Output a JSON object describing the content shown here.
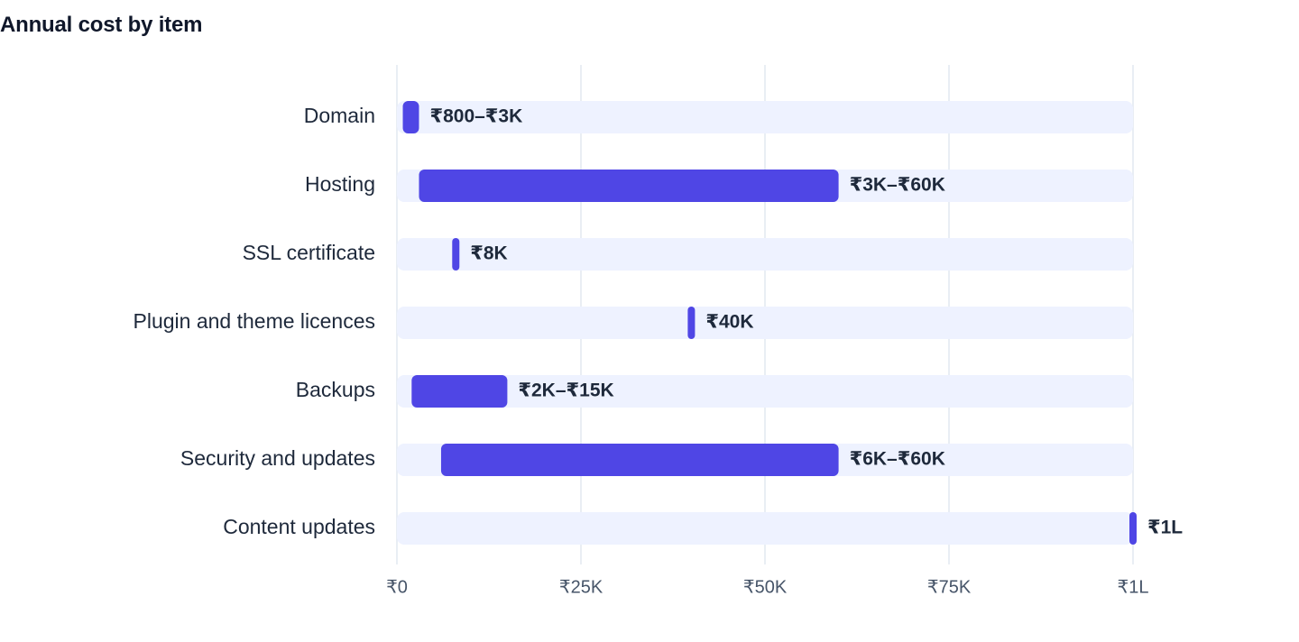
{
  "chart_data": {
    "type": "bar",
    "subtype": "range",
    "orientation": "horizontal",
    "title": "Annual cost by item",
    "xlabel": "",
    "ylabel": "",
    "xlim": [
      0,
      100000
    ],
    "grid": true,
    "categories": [
      "Domain",
      "Hosting",
      "SSL certificate",
      "Plugin and theme licences",
      "Backups",
      "Security and updates",
      "Content updates"
    ],
    "ranges": [
      [
        800,
        3000
      ],
      [
        3000,
        60000
      ],
      [
        8000,
        8000
      ],
      [
        40000,
        40000
      ],
      [
        2000,
        15000
      ],
      [
        6000,
        60000
      ],
      [
        100000,
        100000
      ]
    ],
    "labels": [
      "₹800–₹3K",
      "₹3K–₹60K",
      "₹8K",
      "₹40K",
      "₹2K–₹15K",
      "₹6K–₹60K",
      "₹1L"
    ],
    "ticks": [
      {
        "value": 0,
        "label": "₹0"
      },
      {
        "value": 25000,
        "label": "₹25K"
      },
      {
        "value": 50000,
        "label": "₹50K"
      },
      {
        "value": 75000,
        "label": "₹75K"
      },
      {
        "value": 100000,
        "label": "₹1L"
      }
    ],
    "colors": {
      "bar": "#4f46e5",
      "track": "#eef2ff",
      "grid": "#e2e8f0",
      "title": "#0f172a",
      "text": "#1e293b",
      "tick": "#475569"
    }
  }
}
